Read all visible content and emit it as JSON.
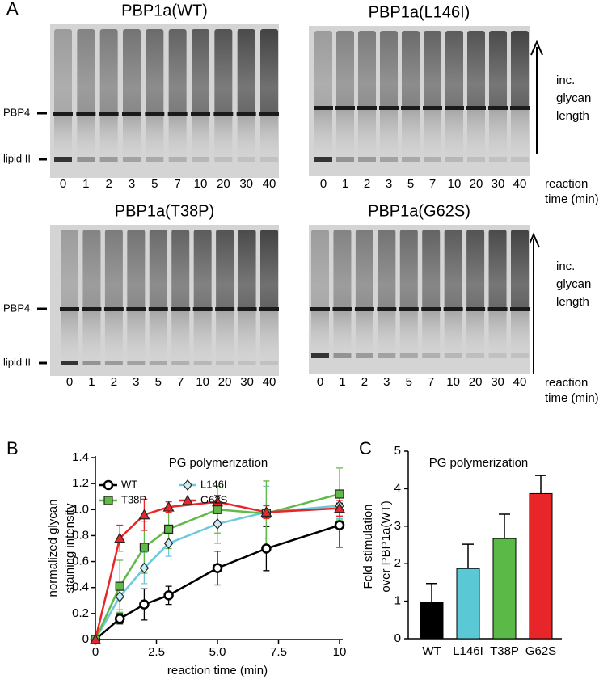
{
  "panels": {
    "a": "A",
    "b": "B",
    "c": "C"
  },
  "gels": {
    "lane_labels": [
      "0",
      "1",
      "2",
      "3",
      "5",
      "7",
      "10",
      "20",
      "30",
      "40"
    ],
    "markers": {
      "pbp4": "PBP4",
      "lipid_ii": "lipid II"
    },
    "arrow_label": [
      "inc.",
      "glycan",
      "length"
    ],
    "time_label": [
      "reaction",
      "time (min)"
    ],
    "items": [
      {
        "title": "PBP1a(WT)"
      },
      {
        "title": "PBP1a(L146I)"
      },
      {
        "title": "PBP1a(T38P)"
      },
      {
        "title": "PBP1a(G62S)"
      }
    ]
  },
  "chart_data": [
    {
      "type": "line",
      "title": "PG polymerization",
      "x_label": "reaction time (min)",
      "y_label": [
        "normalized glycan",
        "staining intensity"
      ],
      "x": [
        0,
        1,
        2,
        3,
        5,
        7,
        10
      ],
      "xlim": [
        0,
        10
      ],
      "xticks": [
        0,
        2.5,
        {
          "value": 5,
          "label": "5.0"
        },
        7.5,
        10
      ],
      "ylim": [
        0,
        1.4
      ],
      "yticks": [
        0,
        0.2,
        0.4,
        0.6,
        0.8,
        {
          "value": 1,
          "label": "1.0"
        },
        1.2,
        1.4
      ],
      "series": [
        {
          "name": "WT",
          "color": "#000000",
          "marker": "circle",
          "values": [
            0,
            0.16,
            0.27,
            0.34,
            0.55,
            0.7,
            0.88
          ],
          "errors": [
            0,
            0.04,
            0.12,
            0.07,
            0.13,
            0.17,
            0.17
          ]
        },
        {
          "name": "L146I",
          "color": "#6cc9dc",
          "marker": "diamond",
          "values": [
            0,
            0.33,
            0.55,
            0.74,
            0.89,
            0.98,
            1.03
          ],
          "errors": [
            0,
            0.1,
            0.12,
            0.1,
            0.15,
            0.2,
            0.1
          ]
        },
        {
          "name": "T38P",
          "color": "#62b94a",
          "marker": "square",
          "values": [
            0,
            0.41,
            0.71,
            0.85,
            1.0,
            0.97,
            1.12
          ],
          "errors": [
            0,
            0.2,
            0.2,
            0.15,
            0.18,
            0.25,
            0.2
          ]
        },
        {
          "name": "G62S",
          "color": "#e8262a",
          "marker": "triangle",
          "values": [
            0,
            0.78,
            0.96,
            1.02,
            1.06,
            0.98,
            1.01
          ],
          "errors": [
            0,
            0.1,
            0.12,
            0.04,
            0.05,
            0.05,
            0.06
          ]
        }
      ]
    },
    {
      "type": "bar",
      "title": "PG polymerization",
      "y_label": [
        "Fold  stimulation",
        "over PBP1a(WT)"
      ],
      "categories": [
        "WT",
        "L146I",
        "T38P",
        "G62S"
      ],
      "values": [
        0.97,
        1.87,
        2.67,
        3.87
      ],
      "errors": [
        0.5,
        0.65,
        0.65,
        0.48
      ],
      "colors": [
        "#000000",
        "#5bc8d6",
        "#5bb947",
        "#e8262a"
      ],
      "ylim": [
        0,
        5
      ],
      "yticks": [
        0,
        1,
        2,
        3,
        4,
        5
      ]
    }
  ]
}
